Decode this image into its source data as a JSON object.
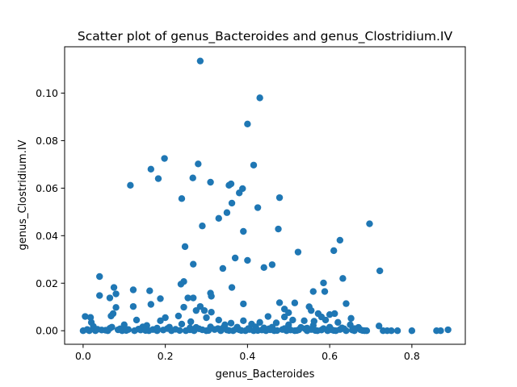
{
  "chart_data": {
    "type": "scatter",
    "title": "Scatter plot of genus_Bacteroides and genus_Clostridium.IV",
    "xlabel": "genus_Bacteroides",
    "ylabel": "genus_Clostridium.IV",
    "xlim": [
      -0.045,
      0.93
    ],
    "ylim": [
      -0.0057,
      0.1195
    ],
    "xticks": [
      "0.0",
      "0.2",
      "0.4",
      "0.6",
      "0.8"
    ],
    "xtick_values": [
      0,
      0.2,
      0.4,
      0.6,
      0.8
    ],
    "yticks": [
      "0.00",
      "0.02",
      "0.04",
      "0.06",
      "0.08",
      "0.10"
    ],
    "ytick_values": [
      0,
      0.02,
      0.04,
      0.06,
      0.08,
      0.1
    ],
    "grid": false,
    "marker_color": "#1f77b4",
    "points": [
      [
        0.285,
        0.1135
      ],
      [
        0.43,
        0.098
      ],
      [
        0.4,
        0.087
      ],
      [
        0.198,
        0.0725
      ],
      [
        0.165,
        0.068
      ],
      [
        0.28,
        0.0702
      ],
      [
        0.415,
        0.0697
      ],
      [
        0.267,
        0.0643
      ],
      [
        0.183,
        0.064
      ],
      [
        0.31,
        0.0625
      ],
      [
        0.115,
        0.0612
      ],
      [
        0.355,
        0.0612
      ],
      [
        0.36,
        0.0618
      ],
      [
        0.388,
        0.0598
      ],
      [
        0.38,
        0.058
      ],
      [
        0.24,
        0.0556
      ],
      [
        0.478,
        0.056
      ],
      [
        0.362,
        0.0537
      ],
      [
        0.425,
        0.0518
      ],
      [
        0.35,
        0.0497
      ],
      [
        0.33,
        0.0473
      ],
      [
        0.697,
        0.045
      ],
      [
        0.29,
        0.0441
      ],
      [
        0.475,
        0.0428
      ],
      [
        0.39,
        0.0418
      ],
      [
        0.625,
        0.0381
      ],
      [
        0.248,
        0.0354
      ],
      [
        0.61,
        0.0337
      ],
      [
        0.523,
        0.0331
      ],
      [
        0.37,
        0.0306
      ],
      [
        0.4,
        0.0296
      ],
      [
        0.268,
        0.028
      ],
      [
        0.46,
        0.0278
      ],
      [
        0.34,
        0.0262
      ],
      [
        0.44,
        0.0266
      ],
      [
        0.722,
        0.0252
      ],
      [
        0.04,
        0.0228
      ],
      [
        0.632,
        0.022
      ],
      [
        0.245,
        0.0207
      ],
      [
        0.238,
        0.0196
      ],
      [
        0.585,
        0.0201
      ],
      [
        0.075,
        0.0182
      ],
      [
        0.362,
        0.0182
      ],
      [
        0.122,
        0.0172
      ],
      [
        0.162,
        0.0168
      ],
      [
        0.31,
        0.0158
      ],
      [
        0.588,
        0.0165
      ],
      [
        0.56,
        0.0165
      ],
      [
        0.04,
        0.0148
      ],
      [
        0.08,
        0.0155
      ],
      [
        0.312,
        0.0145
      ],
      [
        0.065,
        0.0138
      ],
      [
        0.188,
        0.0135
      ],
      [
        0.255,
        0.0138
      ],
      [
        0.268,
        0.0138
      ],
      [
        0.478,
        0.0118
      ],
      [
        0.515,
        0.0117
      ],
      [
        0.64,
        0.0114
      ],
      [
        0.165,
        0.0111
      ],
      [
        0.39,
        0.0113
      ],
      [
        0.08,
        0.0098
      ],
      [
        0.122,
        0.0102
      ],
      [
        0.245,
        0.0099
      ],
      [
        0.285,
        0.0102
      ],
      [
        0.55,
        0.0101
      ],
      [
        0.49,
        0.0091
      ],
      [
        0.295,
        0.0085
      ],
      [
        0.275,
        0.0085
      ],
      [
        0.073,
        0.0072
      ],
      [
        0.068,
        0.0062
      ],
      [
        0.312,
        0.0078
      ],
      [
        0.5,
        0.0076
      ],
      [
        0.555,
        0.0085
      ],
      [
        0.572,
        0.0072
      ],
      [
        0.612,
        0.0072
      ],
      [
        0.6,
        0.0068
      ],
      [
        0.005,
        0.006
      ],
      [
        0.018,
        0.0056
      ],
      [
        0.2,
        0.0055
      ],
      [
        0.232,
        0.0062
      ],
      [
        0.45,
        0.006
      ],
      [
        0.49,
        0.0058
      ],
      [
        0.58,
        0.0058
      ],
      [
        0.652,
        0.0052
      ],
      [
        0.3,
        0.0055
      ],
      [
        0.13,
        0.0045
      ],
      [
        0.188,
        0.0042
      ],
      [
        0.33,
        0.0045
      ],
      [
        0.39,
        0.0042
      ],
      [
        0.51,
        0.0045
      ],
      [
        0.538,
        0.0042
      ],
      [
        0.562,
        0.004
      ],
      [
        0.59,
        0.0045
      ],
      [
        0.02,
        0.0035
      ],
      [
        0.262,
        0.0038
      ],
      [
        0.43,
        0.0035
      ],
      [
        0.47,
        0.0033
      ],
      [
        0.62,
        0.0035
      ],
      [
        0.36,
        0.0032
      ],
      [
        0.24,
        0.0028
      ],
      [
        0.1,
        0.0025
      ],
      [
        0.155,
        0.0022
      ],
      [
        0.345,
        0.0025
      ],
      [
        0.41,
        0.0028
      ],
      [
        0.5,
        0.0025
      ],
      [
        0.56,
        0.0022
      ],
      [
        0.65,
        0.0025
      ],
      [
        0.72,
        0.002
      ],
      [
        0.025,
        0.0018
      ],
      [
        0.07,
        0.0015
      ],
      [
        0.145,
        0.0016
      ],
      [
        0.21,
        0.0015
      ],
      [
        0.275,
        0.0014
      ],
      [
        0.31,
        0.0016
      ],
      [
        0.375,
        0.0015
      ],
      [
        0.42,
        0.0016
      ],
      [
        0.46,
        0.0015
      ],
      [
        0.53,
        0.0014
      ],
      [
        0.6,
        0.0015
      ],
      [
        0.67,
        0.0014
      ],
      [
        0.0,
        0.0
      ],
      [
        0.01,
        0.0005
      ],
      [
        0.03,
        0.0
      ],
      [
        0.045,
        0.0003
      ],
      [
        0.06,
        0.0
      ],
      [
        0.085,
        0.0004
      ],
      [
        0.095,
        0.0
      ],
      [
        0.11,
        0.0005
      ],
      [
        0.125,
        0.0
      ],
      [
        0.14,
        0.0003
      ],
      [
        0.16,
        0.0
      ],
      [
        0.17,
        0.0005
      ],
      [
        0.18,
        0.0
      ],
      [
        0.195,
        0.0003
      ],
      [
        0.215,
        0.0
      ],
      [
        0.225,
        0.0006
      ],
      [
        0.25,
        0.0
      ],
      [
        0.26,
        0.0004
      ],
      [
        0.27,
        0.0
      ],
      [
        0.29,
        0.0004
      ],
      [
        0.3,
        0.0
      ],
      [
        0.32,
        0.0005
      ],
      [
        0.335,
        0.0
      ],
      [
        0.35,
        0.0003
      ],
      [
        0.365,
        0.0
      ],
      [
        0.38,
        0.0004
      ],
      [
        0.395,
        0.0
      ],
      [
        0.405,
        0.0005
      ],
      [
        0.415,
        0.0
      ],
      [
        0.435,
        0.0003
      ],
      [
        0.445,
        0.0
      ],
      [
        0.455,
        0.0004
      ],
      [
        0.465,
        0.0
      ],
      [
        0.485,
        0.0005
      ],
      [
        0.495,
        0.0
      ],
      [
        0.505,
        0.0003
      ],
      [
        0.515,
        0.0
      ],
      [
        0.525,
        0.0004
      ],
      [
        0.545,
        0.0
      ],
      [
        0.555,
        0.0005
      ],
      [
        0.57,
        0.0
      ],
      [
        0.58,
        0.0003
      ],
      [
        0.595,
        0.0
      ],
      [
        0.605,
        0.0004
      ],
      [
        0.615,
        0.0
      ],
      [
        0.625,
        0.0005
      ],
      [
        0.64,
        0.0
      ],
      [
        0.655,
        0.0003
      ],
      [
        0.66,
        0.0
      ],
      [
        0.675,
        0.0004
      ],
      [
        0.685,
        0.0
      ],
      [
        0.69,
        0.0
      ],
      [
        0.73,
        0.0
      ],
      [
        0.74,
        0.0
      ],
      [
        0.75,
        0.0
      ],
      [
        0.765,
        0.0
      ],
      [
        0.8,
        0.0
      ],
      [
        0.86,
        0.0
      ],
      [
        0.87,
        0.0
      ],
      [
        0.888,
        0.0004
      ],
      [
        0.015,
        0.0
      ],
      [
        0.035,
        0.0006
      ],
      [
        0.055,
        0.0002
      ],
      [
        0.09,
        0.0008
      ],
      [
        0.105,
        0.0001
      ],
      [
        0.135,
        0.0007
      ],
      [
        0.152,
        0.0001
      ],
      [
        0.205,
        0.0009
      ],
      [
        0.235,
        0.0001
      ],
      [
        0.282,
        0.0008
      ],
      [
        0.305,
        0.0001
      ],
      [
        0.328,
        0.0009
      ],
      [
        0.355,
        0.0001
      ],
      [
        0.372,
        0.0007
      ],
      [
        0.385,
        0.0001
      ],
      [
        0.402,
        0.0009
      ],
      [
        0.425,
        0.0001
      ],
      [
        0.452,
        0.0008
      ],
      [
        0.472,
        0.0001
      ],
      [
        0.49,
        0.0009
      ],
      [
        0.52,
        0.0001
      ],
      [
        0.54,
        0.0008
      ],
      [
        0.565,
        0.0001
      ],
      [
        0.585,
        0.0009
      ],
      [
        0.61,
        0.0001
      ],
      [
        0.635,
        0.0008
      ],
      [
        0.66,
        0.0009
      ],
      [
        0.68,
        0.0001
      ],
      [
        0.065,
        0.001
      ],
      [
        0.18,
        0.0011
      ],
      [
        0.26,
        0.0012
      ],
      [
        0.34,
        0.0011
      ],
      [
        0.44,
        0.0012
      ],
      [
        0.545,
        0.0011
      ],
      [
        0.63,
        0.0012
      ]
    ]
  }
}
